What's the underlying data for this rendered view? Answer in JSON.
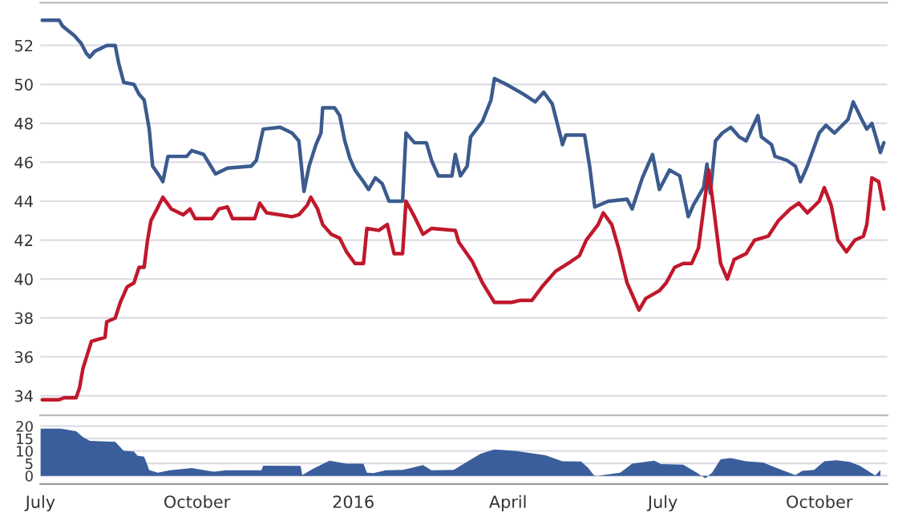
{
  "chart_data": [
    {
      "type": "line",
      "tick_labels": "y",
      "grid": "y",
      "legend": false,
      "line_style": "solid",
      "marker": "none",
      "xlim": [
        "2015-07-01",
        "2016-11-10"
      ],
      "ylim": [
        33,
        54.2
      ],
      "yticks": [
        34,
        36,
        38,
        40,
        42,
        44,
        46,
        48,
        50,
        52
      ],
      "series": [
        {
          "color": "#3b5b8e",
          "x": [
            "2015-07-02",
            "2015-07-12",
            "2015-07-14",
            "2015-07-21",
            "2015-07-25",
            "2015-07-28",
            "2015-07-30",
            "2015-08-02",
            "2015-08-09",
            "2015-08-14",
            "2015-08-16",
            "2015-08-19",
            "2015-08-25",
            "2015-08-28",
            "2015-08-31",
            "2015-09-03",
            "2015-09-05",
            "2015-09-09",
            "2015-09-11",
            "2015-09-14",
            "2015-09-25",
            "2015-09-28",
            "2015-10-05",
            "2015-10-12",
            "2015-10-19",
            "2015-11-02",
            "2015-11-05",
            "2015-11-09",
            "2015-11-19",
            "2015-11-26",
            "2015-11-30",
            "2015-12-03",
            "2015-12-06",
            "2015-12-10",
            "2015-12-13",
            "2015-12-14",
            "2015-12-21",
            "2015-12-24",
            "2015-12-27",
            "2015-12-30",
            "2016-01-02",
            "2016-01-07",
            "2016-01-10",
            "2016-01-14",
            "2016-01-18",
            "2016-01-22",
            "2016-01-30",
            "2016-02-01",
            "2016-02-06",
            "2016-02-13",
            "2016-02-16",
            "2016-02-20",
            "2016-02-28",
            "2016-03-01",
            "2016-03-04",
            "2016-03-08",
            "2016-03-10",
            "2016-03-17",
            "2016-03-22",
            "2016-03-24",
            "2016-03-31",
            "2016-04-10",
            "2016-04-17",
            "2016-04-22",
            "2016-04-27",
            "2016-05-02",
            "2016-05-03",
            "2016-05-05",
            "2016-05-16",
            "2016-05-19",
            "2016-05-22",
            "2016-05-30",
            "2016-06-10",
            "2016-06-13",
            "2016-06-19",
            "2016-06-25",
            "2016-06-29",
            "2016-07-05",
            "2016-07-11",
            "2016-07-16",
            "2016-07-19",
            "2016-07-25",
            "2016-07-27",
            "2016-07-29",
            "2016-08-01",
            "2016-08-05",
            "2016-08-10",
            "2016-08-15",
            "2016-08-19",
            "2016-08-26",
            "2016-08-28",
            "2016-09-03",
            "2016-09-05",
            "2016-09-12",
            "2016-09-17",
            "2016-09-20",
            "2016-09-24",
            "2016-10-01",
            "2016-10-05",
            "2016-10-10",
            "2016-10-18",
            "2016-10-21",
            "2016-10-26",
            "2016-10-29",
            "2016-11-01",
            "2016-11-06",
            "2016-11-08"
          ],
          "values": [
            53.3,
            53.3,
            53.0,
            52.5,
            52.1,
            51.6,
            51.4,
            51.7,
            52.0,
            52.0,
            51.1,
            50.1,
            50.0,
            49.5,
            49.2,
            47.7,
            45.8,
            45.3,
            45.0,
            46.3,
            46.3,
            46.6,
            46.4,
            45.4,
            45.7,
            45.8,
            46.1,
            47.7,
            47.8,
            47.5,
            47.1,
            44.5,
            45.8,
            46.9,
            47.5,
            48.8,
            48.8,
            48.4,
            47.1,
            46.2,
            45.6,
            45.0,
            44.6,
            45.2,
            44.9,
            44.0,
            44.0,
            47.5,
            47.0,
            47.0,
            46.1,
            45.3,
            45.3,
            46.4,
            45.3,
            45.8,
            47.3,
            48.1,
            49.2,
            50.3,
            50.0,
            49.5,
            49.1,
            49.6,
            49.0,
            47.3,
            46.9,
            47.4,
            47.4,
            45.8,
            43.7,
            44.0,
            44.1,
            43.6,
            45.2,
            46.4,
            44.6,
            45.6,
            45.3,
            43.2,
            43.8,
            44.7,
            45.9,
            44.4,
            47.1,
            47.5,
            47.8,
            47.3,
            47.1,
            48.4,
            47.3,
            46.9,
            46.3,
            46.1,
            45.8,
            45.0,
            45.8,
            47.5,
            47.9,
            47.5,
            48.2,
            49.1,
            48.2,
            47.7,
            48.0,
            46.5,
            47.0
          ]
        },
        {
          "color": "#c0182c",
          "x": [
            "2015-07-02",
            "2015-07-12",
            "2015-07-15",
            "2015-07-22",
            "2015-07-24",
            "2015-07-26",
            "2015-07-31",
            "2015-08-08",
            "2015-08-09",
            "2015-08-14",
            "2015-08-17",
            "2015-08-21",
            "2015-08-25",
            "2015-08-28",
            "2015-08-31",
            "2015-09-02",
            "2015-09-04",
            "2015-09-07",
            "2015-09-11",
            "2015-09-16",
            "2015-09-23",
            "2015-09-27",
            "2015-09-30",
            "2015-10-10",
            "2015-10-14",
            "2015-10-19",
            "2015-10-22",
            "2015-11-04",
            "2015-11-07",
            "2015-11-11",
            "2015-11-26",
            "2015-11-30",
            "2015-12-05",
            "2015-12-07",
            "2015-12-11",
            "2015-12-14",
            "2015-12-19",
            "2015-12-24",
            "2015-12-28",
            "2016-01-02",
            "2016-01-07",
            "2016-01-09",
            "2016-01-16",
            "2016-01-21",
            "2016-01-25",
            "2016-01-30",
            "2016-02-01",
            "2016-02-06",
            "2016-02-11",
            "2016-02-16",
            "2016-03-01",
            "2016-03-03",
            "2016-03-11",
            "2016-03-17",
            "2016-03-24",
            "2016-04-03",
            "2016-04-08",
            "2016-04-15",
            "2016-04-21",
            "2016-04-29",
            "2016-05-08",
            "2016-05-13",
            "2016-05-17",
            "2016-05-24",
            "2016-05-27",
            "2016-06-01",
            "2016-06-05",
            "2016-06-10",
            "2016-06-17",
            "2016-06-21",
            "2016-06-29",
            "2016-07-03",
            "2016-07-08",
            "2016-07-13",
            "2016-07-18",
            "2016-07-22",
            "2016-07-25",
            "2016-07-28",
            "2016-07-31",
            "2016-08-04",
            "2016-08-08",
            "2016-08-12",
            "2016-08-19",
            "2016-08-24",
            "2016-09-01",
            "2016-09-07",
            "2016-09-14",
            "2016-09-19",
            "2016-09-24",
            "2016-10-01",
            "2016-10-04",
            "2016-10-08",
            "2016-10-12",
            "2016-10-17",
            "2016-10-22",
            "2016-10-27",
            "2016-10-29",
            "2016-11-01",
            "2016-11-05",
            "2016-11-08"
          ],
          "values": [
            33.8,
            33.8,
            33.9,
            33.9,
            34.4,
            35.4,
            36.8,
            37.0,
            37.8,
            38.0,
            38.8,
            39.6,
            39.8,
            40.6,
            40.6,
            42.0,
            43.0,
            43.5,
            44.2,
            43.6,
            43.3,
            43.6,
            43.1,
            43.1,
            43.6,
            43.7,
            43.1,
            43.1,
            43.9,
            43.4,
            43.2,
            43.3,
            43.8,
            44.2,
            43.6,
            42.8,
            42.3,
            42.1,
            41.4,
            40.8,
            40.8,
            42.6,
            42.5,
            42.8,
            41.3,
            41.3,
            44.0,
            43.2,
            42.3,
            42.6,
            42.5,
            41.9,
            40.9,
            39.8,
            38.8,
            38.8,
            38.9,
            38.9,
            39.6,
            40.4,
            40.9,
            41.2,
            42.0,
            42.8,
            43.4,
            42.8,
            41.6,
            39.8,
            38.4,
            39.0,
            39.4,
            39.8,
            40.6,
            40.8,
            40.8,
            41.6,
            43.6,
            45.6,
            43.6,
            40.8,
            40.0,
            41.0,
            41.3,
            42.0,
            42.2,
            43.0,
            43.6,
            43.9,
            43.4,
            44.0,
            44.7,
            43.8,
            42.0,
            41.4,
            42.0,
            42.2,
            42.8,
            45.2,
            45.0,
            43.6
          ]
        }
      ]
    },
    {
      "type": "area",
      "grid": "y",
      "legend": false,
      "xlim": [
        "2015-07-01",
        "2016-11-10"
      ],
      "xticks": [
        {
          "value": "2015-07-01",
          "label": "July"
        },
        {
          "value": "2015-10-01",
          "label": "October"
        },
        {
          "value": "2016-01-01",
          "label": "2016"
        },
        {
          "value": "2016-04-01",
          "label": "April"
        },
        {
          "value": "2016-07-01",
          "label": "July"
        },
        {
          "value": "2016-10-01",
          "label": "October"
        }
      ],
      "ylim": [
        -3.3,
        24.4
      ],
      "yticks": [
        0,
        5,
        10,
        15,
        20
      ],
      "series": [
        {
          "color": "#3a5e9c",
          "x": [
            "2015-07-01",
            "2015-07-13",
            "2015-07-22",
            "2015-07-26",
            "2015-07-30",
            "2015-08-14",
            "2015-08-19",
            "2015-08-25",
            "2015-08-27",
            "2015-08-31",
            "2015-09-03",
            "2015-09-08",
            "2015-09-15",
            "2015-09-28",
            "2015-10-11",
            "2015-10-18",
            "2015-11-08",
            "2015-11-09",
            "2015-12-01",
            "2015-12-02",
            "2015-12-08",
            "2015-12-18",
            "2015-12-28",
            "2016-01-07",
            "2016-01-09",
            "2016-01-13",
            "2016-01-20",
            "2016-01-30",
            "2016-02-11",
            "2016-02-16",
            "2016-02-29",
            "2016-03-09",
            "2016-03-16",
            "2016-03-24",
            "2016-04-06",
            "2016-04-23",
            "2016-05-03",
            "2016-05-14",
            "2016-05-18",
            "2016-05-22",
            "2016-05-27",
            "2016-06-06",
            "2016-06-13",
            "2016-06-26",
            "2016-06-30",
            "2016-07-13",
            "2016-07-21",
            "2016-07-26",
            "2016-07-30",
            "2016-08-04",
            "2016-08-10",
            "2016-08-19",
            "2016-08-29",
            "2016-09-04",
            "2016-09-17",
            "2016-09-21",
            "2016-09-28",
            "2016-10-04",
            "2016-10-11",
            "2016-10-19",
            "2016-10-25",
            "2016-11-03",
            "2016-11-06"
          ],
          "values": [
            19.0,
            19.0,
            18.0,
            15.6,
            14.1,
            13.7,
            10.1,
            9.8,
            8.1,
            7.7,
            2.3,
            1.3,
            2.2,
            3.1,
            1.7,
            2.2,
            2.2,
            4.1,
            4.0,
            0.3,
            2.7,
            6.1,
            4.9,
            4.9,
            1.3,
            1.1,
            2.2,
            2.4,
            4.3,
            2.2,
            2.4,
            6.1,
            8.9,
            10.6,
            10.0,
            8.3,
            5.9,
            5.8,
            3.3,
            -0.2,
            0.3,
            1.3,
            4.9,
            6.1,
            4.7,
            4.5,
            1.3,
            -1.0,
            1.3,
            6.7,
            7.2,
            5.9,
            5.4,
            3.7,
            0.3,
            2.0,
            2.4,
            5.9,
            6.3,
            5.6,
            4.0,
            0.1,
            2.4
          ]
        }
      ]
    }
  ]
}
